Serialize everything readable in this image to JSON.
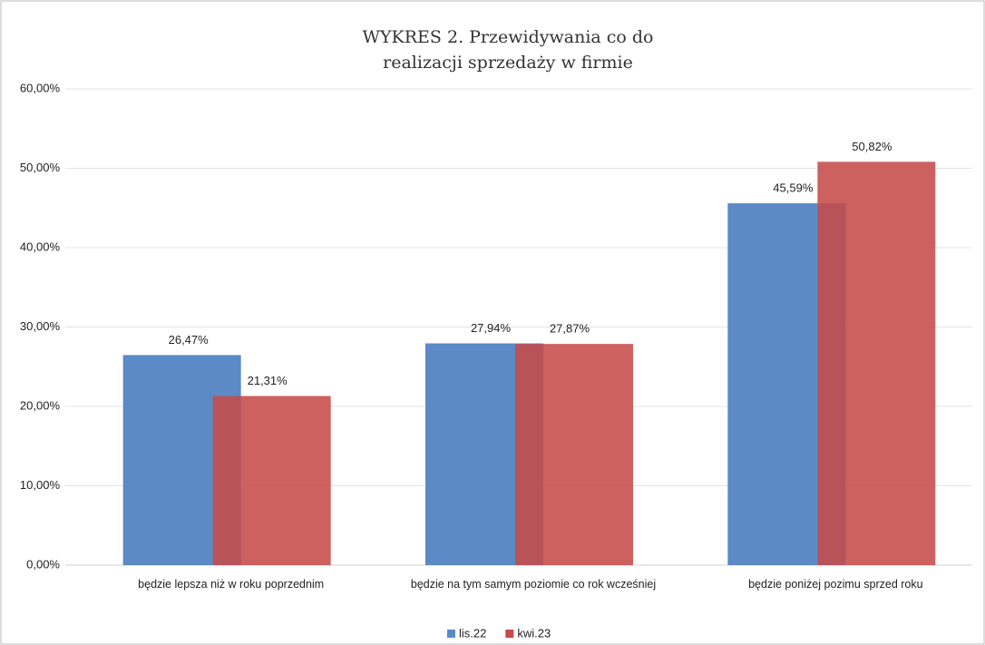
{
  "chart_data": {
    "type": "bar",
    "title": [
      "WYKRES 2. Przewidywania co do",
      "realizacji sprzedaży w firmie"
    ],
    "categories": [
      "będzie lepsza niż w roku poprzednim",
      "będzie na tym samym poziomie co rok wcześniej",
      "będzie poniżej pozimu sprzed roku"
    ],
    "series": [
      {
        "name": "lis.22",
        "color": "#5b8ac6",
        "values": [
          26.47,
          27.94,
          45.59
        ],
        "value_labels": [
          "26,47%",
          "27,94%",
          "45,59%"
        ]
      },
      {
        "name": "kwi.23",
        "color": "#c64b4a",
        "values": [
          21.31,
          27.87,
          50.82
        ],
        "value_labels": [
          "21,31%",
          "27,87%",
          "50,82%"
        ]
      }
    ],
    "ylim": [
      0,
      60
    ],
    "yticks": [
      {
        "value": 0,
        "label": "0,00%"
      },
      {
        "value": 10,
        "label": "10,00%"
      },
      {
        "value": 20,
        "label": "20,00%"
      },
      {
        "value": 30,
        "label": "30,00%"
      },
      {
        "value": 40,
        "label": "40,00%"
      },
      {
        "value": 50,
        "label": "50,00%"
      },
      {
        "value": 60,
        "label": "60,00%"
      }
    ],
    "grid": true,
    "legend": "bottom"
  }
}
